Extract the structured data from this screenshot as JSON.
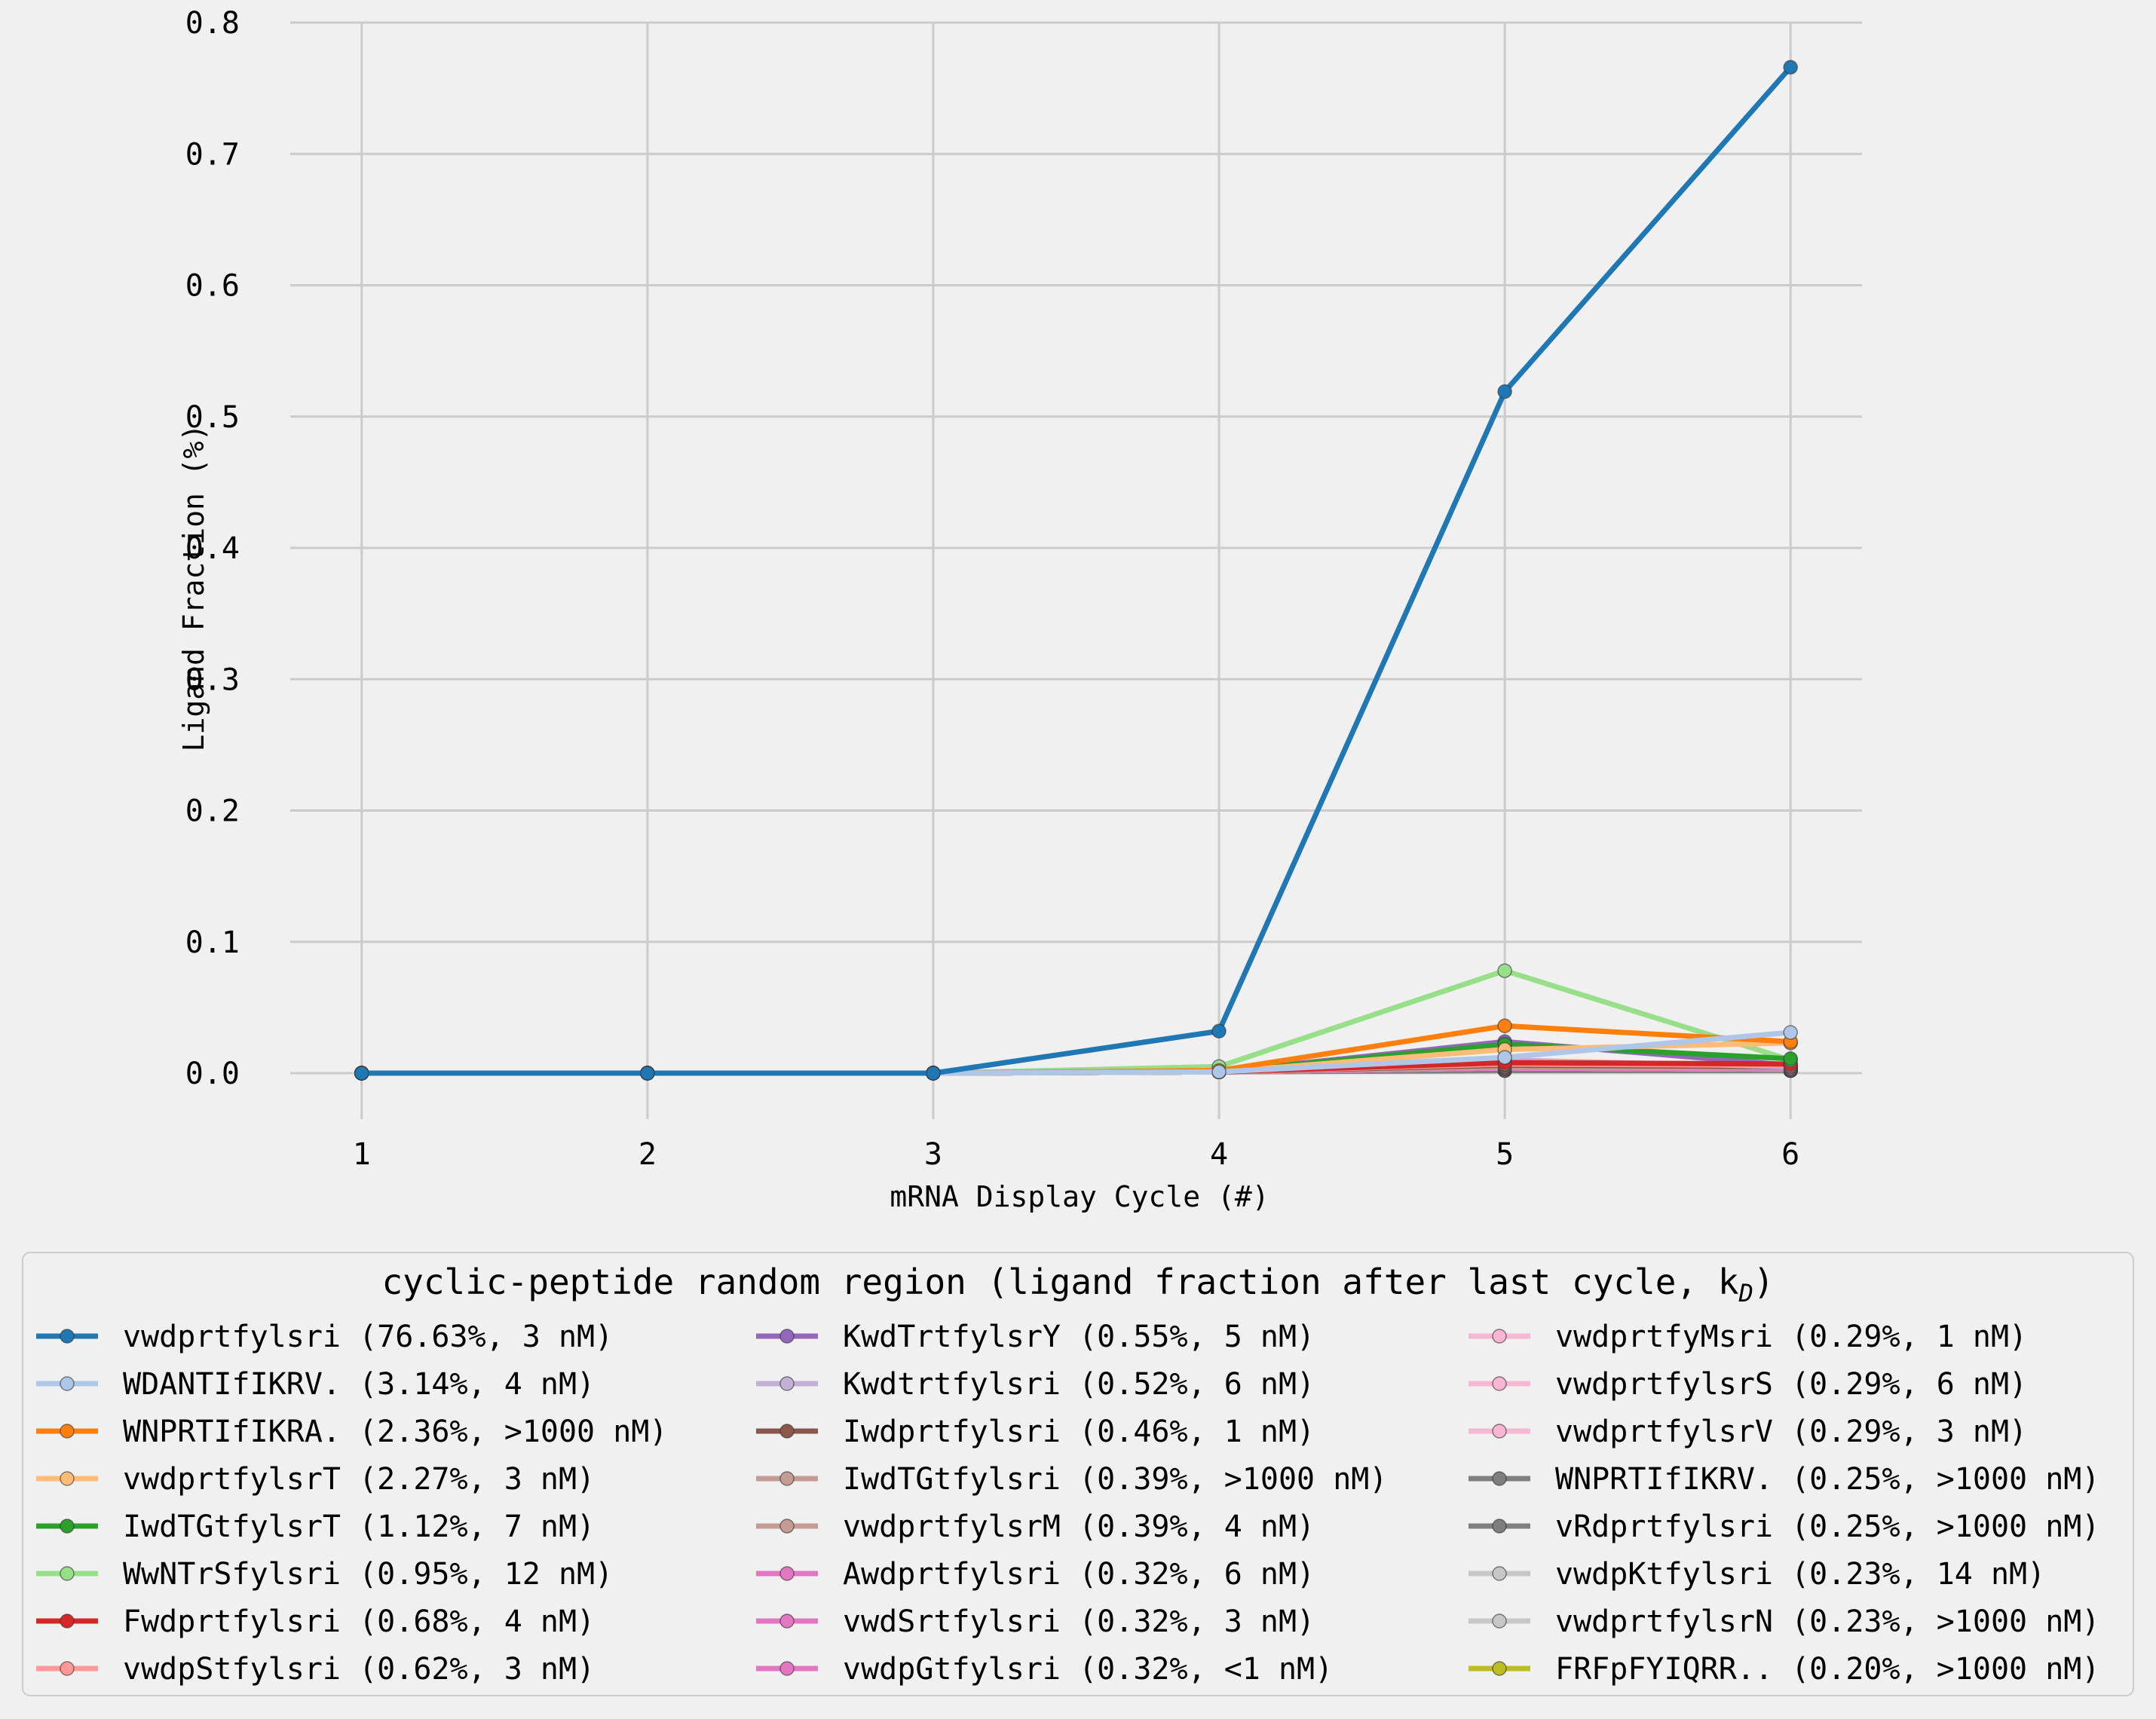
{
  "chart_data": {
    "type": "line",
    "title": "",
    "xlabel": "mRNA Display Cycle (#)",
    "ylabel": "Ligand Fraction (%)",
    "x": [
      1,
      2,
      3,
      4,
      5,
      6
    ],
    "xlim": [
      0.75,
      6.25
    ],
    "ylim": [
      -0.035,
      0.8
    ],
    "yticks": [
      "0.0",
      "0.1",
      "0.2",
      "0.3",
      "0.4",
      "0.5",
      "0.6",
      "0.7",
      "0.8"
    ],
    "yticks_values": [
      0,
      0.1,
      0.2,
      0.3,
      0.4,
      0.5,
      0.6,
      0.7,
      0.8
    ],
    "xticks": [
      "1",
      "2",
      "3",
      "4",
      "5",
      "6"
    ],
    "grid": true,
    "legend_position": "bottom",
    "legend_title_main": "cyclic-peptide random region (ligand fraction after last cycle, k",
    "legend_title_sub": "D",
    "legend_title_end": ")",
    "series": [
      {
        "name": "vwdprtfylsri (76.63%, 3 nM)",
        "color": "#1f77b4",
        "values": [
          0,
          0,
          0,
          0.032,
          0.519,
          0.766
        ]
      },
      {
        "name": "WDANTIfIKRV. (3.14%, 4 nM)",
        "color": "#aec7e8",
        "values": [
          0,
          0,
          0,
          0.001,
          0.012,
          0.031
        ]
      },
      {
        "name": "WNPRTIfIKRA. (2.36%, >1000 nM)",
        "color": "#ff7f0e",
        "values": [
          0,
          0,
          0,
          0.002,
          0.036,
          0.024
        ]
      },
      {
        "name": "vwdprtfylsrT (2.27%, 3 nM)",
        "color": "#ffbb78",
        "values": [
          0,
          0,
          0,
          0.001,
          0.018,
          0.023
        ]
      },
      {
        "name": "IwdTGtfylsrT (1.12%, 7 nM)",
        "color": "#2ca02c",
        "values": [
          0,
          0,
          0,
          0.001,
          0.022,
          0.011
        ]
      },
      {
        "name": "WwNTrSfylsri (0.95%, 12 nM)",
        "color": "#98df8a",
        "values": [
          0,
          0,
          0,
          0.005,
          0.078,
          0.01
        ]
      },
      {
        "name": "Fwdprtfylsri (0.68%, 4 nM)",
        "color": "#d62728",
        "values": [
          0,
          0,
          0,
          0.001,
          0.008,
          0.007
        ]
      },
      {
        "name": "vwdpStfylsri (0.62%, 3 nM)",
        "color": "#ff9896",
        "values": [
          0,
          0,
          0,
          0.001,
          0.007,
          0.006
        ]
      },
      {
        "name": "KwdTrtfylsrY (0.55%, 5 nM)",
        "color": "#9467bd",
        "values": [
          0,
          0,
          0,
          0.001,
          0.024,
          0.006
        ]
      },
      {
        "name": "Kwdtrtfylsri (0.52%, 6 nM)",
        "color": "#c5b0d5",
        "values": [
          0,
          0,
          0,
          0.001,
          0.01,
          0.005
        ]
      },
      {
        "name": "Iwdprtfylsri (0.46%, 1 nM)",
        "color": "#8c564b",
        "values": [
          0,
          0,
          0,
          0.001,
          0.006,
          0.005
        ]
      },
      {
        "name": "IwdTGtfylsri (0.39%, >1000 nM)",
        "color": "#c49c94",
        "values": [
          0,
          0,
          0,
          0.001,
          0.005,
          0.004
        ]
      },
      {
        "name": "vwdprtfylsrM (0.39%, 4 nM)",
        "color": "#c49c94",
        "values": [
          0,
          0,
          0,
          0.001,
          0.005,
          0.004
        ]
      },
      {
        "name": "Awdprtfylsri (0.32%, 6 nM)",
        "color": "#e377c2",
        "values": [
          0,
          0,
          0,
          0.001,
          0.006,
          0.003
        ]
      },
      {
        "name": "vwdSrtfylsri (0.32%, 3 nM)",
        "color": "#e377c2",
        "values": [
          0,
          0,
          0,
          0.001,
          0.005,
          0.003
        ]
      },
      {
        "name": "vwdpGtfylsri (0.32%, <1 nM)",
        "color": "#e377c2",
        "values": [
          0,
          0,
          0,
          0.001,
          0.004,
          0.003
        ]
      },
      {
        "name": "vwdprtfyMsri (0.29%, 1 nM)",
        "color": "#f7b6d2",
        "values": [
          0,
          0,
          0,
          0.001,
          0.004,
          0.003
        ]
      },
      {
        "name": "vwdprtfylsrS (0.29%, 6 nM)",
        "color": "#f7b6d2",
        "values": [
          0,
          0,
          0,
          0.001,
          0.004,
          0.003
        ]
      },
      {
        "name": "vwdprtfylsrV (0.29%, 3 nM)",
        "color": "#f7b6d2",
        "values": [
          0,
          0,
          0,
          0.001,
          0.004,
          0.003
        ]
      },
      {
        "name": "WNPRTIfIKRV. (0.25%, >1000 nM)",
        "color": "#7f7f7f",
        "values": [
          0,
          0,
          0,
          0.001,
          0.003,
          0.002
        ]
      },
      {
        "name": "vRdprtfylsri (0.25%, >1000 nM)",
        "color": "#7f7f7f",
        "values": [
          0,
          0,
          0,
          0.001,
          0.002,
          0.002
        ]
      },
      {
        "name": "vwdpKtfylsri (0.23%, 14 nM)",
        "color": "#c7c7c7",
        "values": [
          0,
          0,
          0,
          0.001,
          0.002,
          0.002
        ]
      },
      {
        "name": "vwdprtfylsrN (0.23%, >1000 nM)",
        "color": "#c7c7c7",
        "values": [
          0,
          0,
          0,
          0.001,
          0.002,
          0.002
        ]
      },
      {
        "name": "FRFpFYIQRR.. (0.20%, >1000 nM)",
        "color": "#bcbd22",
        "values": [
          0,
          0,
          0,
          0.001,
          0.006,
          0.002
        ]
      }
    ]
  }
}
